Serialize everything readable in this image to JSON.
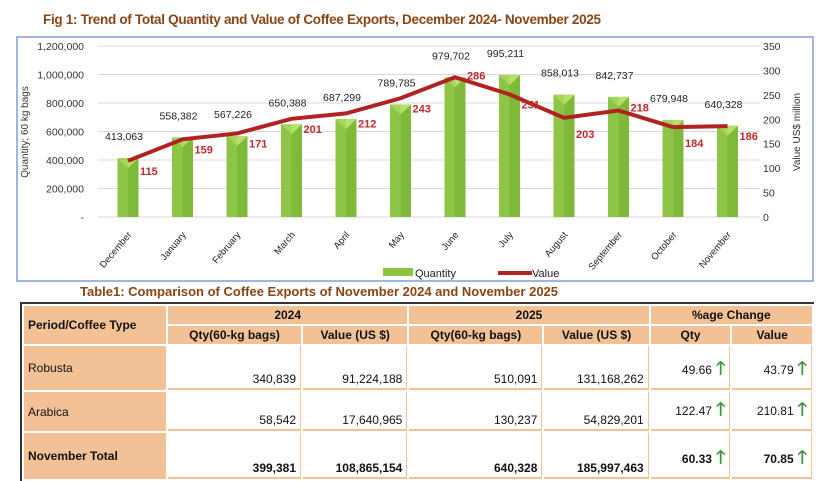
{
  "chart_data": {
    "type": "bar+line",
    "title": "Fig 1: Trend of Total Quantity and Value of Coffee  Exports, December 2024- November 2025",
    "categories": [
      "December",
      "January",
      "February",
      "March",
      "April",
      "May",
      "June",
      "July",
      "August",
      "September",
      "October",
      "November"
    ],
    "series": [
      {
        "name": "Quantity",
        "type": "bar",
        "axis": "left",
        "values": [
          413063,
          558382,
          567226,
          650388,
          687299,
          789785,
          979702,
          995211,
          858013,
          842737,
          679948,
          640328
        ],
        "labels": [
          "413,063",
          "558,382",
          "567,226",
          "650,388",
          "687,299",
          "789,785",
          "979,702",
          "995,211",
          "858,013",
          "842,737",
          "679,948",
          "640,328"
        ],
        "color": "#8cc63f"
      },
      {
        "name": "Value",
        "type": "line",
        "axis": "right",
        "values": [
          115,
          159,
          171,
          201,
          212,
          243,
          286,
          251,
          203,
          218,
          184,
          186
        ],
        "color": "#b22222"
      }
    ],
    "ylabel": "Quantity; 60 kg bags",
    "y2label": "Value US$ million",
    "ylim": [
      0,
      1200000
    ],
    "y2lim": [
      0,
      350
    ],
    "yticks": [
      "-",
      "200,000",
      "400,000",
      "600,000",
      "800,000",
      "1,000,000",
      "1,200,000"
    ],
    "y2ticks": [
      "0",
      "50",
      "100",
      "150",
      "200",
      "250",
      "300",
      "350"
    ],
    "grid": true,
    "legend": "bottom"
  },
  "table": {
    "title": "Table1: Comparison of Coffee Exports of November  2024 and  November 2025",
    "corner": "Period/Coffee Type",
    "groups": [
      "2024",
      "2025",
      "%age Change"
    ],
    "subheaders": [
      "Qty(60-kg bags)",
      "Value (US $)",
      "Qty(60-kg bags)",
      "Value (US $)",
      "Qty",
      "Value"
    ],
    "rows": [
      {
        "label": "Robusta",
        "cells": [
          "340,839",
          "91,224,188",
          "510,091",
          "131,168,262",
          "49.66",
          "43.79"
        ]
      },
      {
        "label": "Arabica",
        "cells": [
          "58,542",
          "17,640,965",
          "130,237",
          "54,829,201",
          "122.47",
          "210.81"
        ]
      },
      {
        "label": "November Total",
        "cells": [
          "399,381",
          "108,865,154",
          "640,328",
          "185,997,463",
          "60.33",
          "70.85"
        ]
      }
    ],
    "change_icon": "arrow-up-icon"
  }
}
